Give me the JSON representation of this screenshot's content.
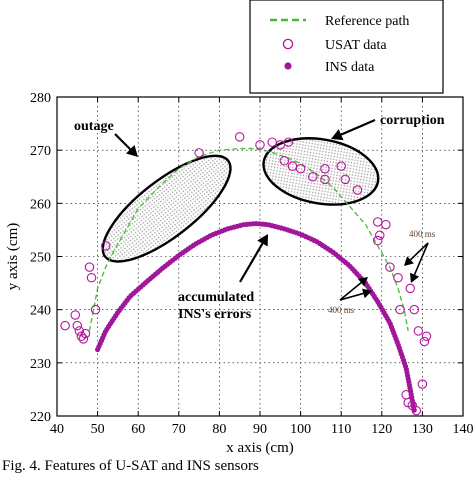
{
  "chart_data": {
    "type": "scatter",
    "xlabel": "x axis (cm)",
    "ylabel": "y axis (cm)",
    "xlim": [
      40,
      140
    ],
    "ylim": [
      220,
      280
    ],
    "xticks": [
      40,
      50,
      60,
      70,
      80,
      90,
      100,
      110,
      120,
      130,
      140
    ],
    "yticks": [
      220,
      230,
      240,
      250,
      260,
      270,
      280
    ],
    "grid": true,
    "legend": {
      "placement": "top-right",
      "entries": [
        {
          "label": "Reference path",
          "marker": "dashed-line",
          "color": "#44bb33"
        },
        {
          "label": "USAT data",
          "marker": "open-circle",
          "color": "#b5179e"
        },
        {
          "label": "INS data",
          "marker": "filled-dot",
          "color": "#a0179a"
        }
      ]
    },
    "series": [
      {
        "name": "Reference path",
        "color": "#44bb33",
        "style": "dashed",
        "points": [
          [
            48,
            236
          ],
          [
            49,
            240
          ],
          [
            50,
            244
          ],
          [
            52,
            248
          ],
          [
            54,
            251
          ],
          [
            57,
            255
          ],
          [
            60,
            259
          ],
          [
            65,
            263
          ],
          [
            70,
            266.5
          ],
          [
            75,
            268.8
          ],
          [
            80,
            270
          ],
          [
            85,
            270.3
          ],
          [
            88,
            270.3
          ],
          [
            92,
            269.8
          ],
          [
            96,
            268.8
          ],
          [
            100,
            267.5
          ],
          [
            104,
            265.5
          ],
          [
            108,
            263
          ],
          [
            112,
            259.5
          ],
          [
            116,
            256
          ],
          [
            119,
            252
          ],
          [
            122,
            248
          ],
          [
            124,
            244
          ],
          [
            125.5,
            240
          ],
          [
            126.5,
            236
          ]
        ]
      },
      {
        "name": "USAT data",
        "color": "#b5179e",
        "points": [
          [
            42,
            237
          ],
          [
            44.5,
            239
          ],
          [
            45,
            237
          ],
          [
            45.5,
            236
          ],
          [
            46,
            235
          ],
          [
            46.5,
            234.5
          ],
          [
            47,
            235.5
          ],
          [
            48,
            248
          ],
          [
            48.5,
            246
          ],
          [
            49.5,
            240
          ],
          [
            52,
            252
          ],
          [
            75,
            269.5
          ],
          [
            85,
            272.5
          ],
          [
            90,
            271
          ],
          [
            93,
            271.5
          ],
          [
            95,
            271
          ],
          [
            97,
            271.5
          ],
          [
            96,
            268
          ],
          [
            98,
            267
          ],
          [
            100,
            266.5
          ],
          [
            103,
            265
          ],
          [
            106,
            266.5
          ],
          [
            106,
            264.5
          ],
          [
            110,
            267
          ],
          [
            111,
            264.5
          ],
          [
            114,
            262.5
          ],
          [
            119,
            256.5
          ],
          [
            119.5,
            254
          ],
          [
            119,
            253
          ],
          [
            121,
            256
          ],
          [
            122,
            248
          ],
          [
            124,
            246
          ],
          [
            124.5,
            240
          ],
          [
            127,
            244
          ],
          [
            128,
            240
          ],
          [
            129,
            236
          ],
          [
            126,
            224
          ],
          [
            126.5,
            222.5
          ],
          [
            127.5,
            222
          ],
          [
            128.5,
            221
          ],
          [
            130,
            226
          ],
          [
            130.5,
            234
          ],
          [
            131,
            235
          ]
        ]
      },
      {
        "name": "INS data",
        "color": "#a0179a",
        "path": [
          [
            50,
            232.5
          ],
          [
            52,
            236
          ],
          [
            55,
            239.5
          ],
          [
            58,
            242.5
          ],
          [
            62,
            245.2
          ],
          [
            66,
            247.8
          ],
          [
            70,
            250.2
          ],
          [
            74,
            252.3
          ],
          [
            78,
            254
          ],
          [
            82,
            255.2
          ],
          [
            86,
            256
          ],
          [
            89,
            256.2
          ],
          [
            92,
            256
          ],
          [
            96,
            255.2
          ],
          [
            100,
            254.2
          ],
          [
            104,
            252.8
          ],
          [
            108,
            250.8
          ],
          [
            112,
            248.3
          ],
          [
            116,
            245
          ],
          [
            119,
            241.5
          ],
          [
            122,
            237.5
          ],
          [
            124,
            233.5
          ],
          [
            126,
            229
          ],
          [
            127,
            225
          ],
          [
            128,
            221
          ]
        ]
      }
    ],
    "annotations": [
      {
        "text": "outage"
      },
      {
        "text": "corruption"
      },
      {
        "text": "accumulated"
      },
      {
        "text": "INS's errors"
      },
      {
        "text": "400 ms"
      },
      {
        "text": "400 ms"
      }
    ]
  },
  "caption": "Fig. 4. Features of U-SAT and INS sensors"
}
